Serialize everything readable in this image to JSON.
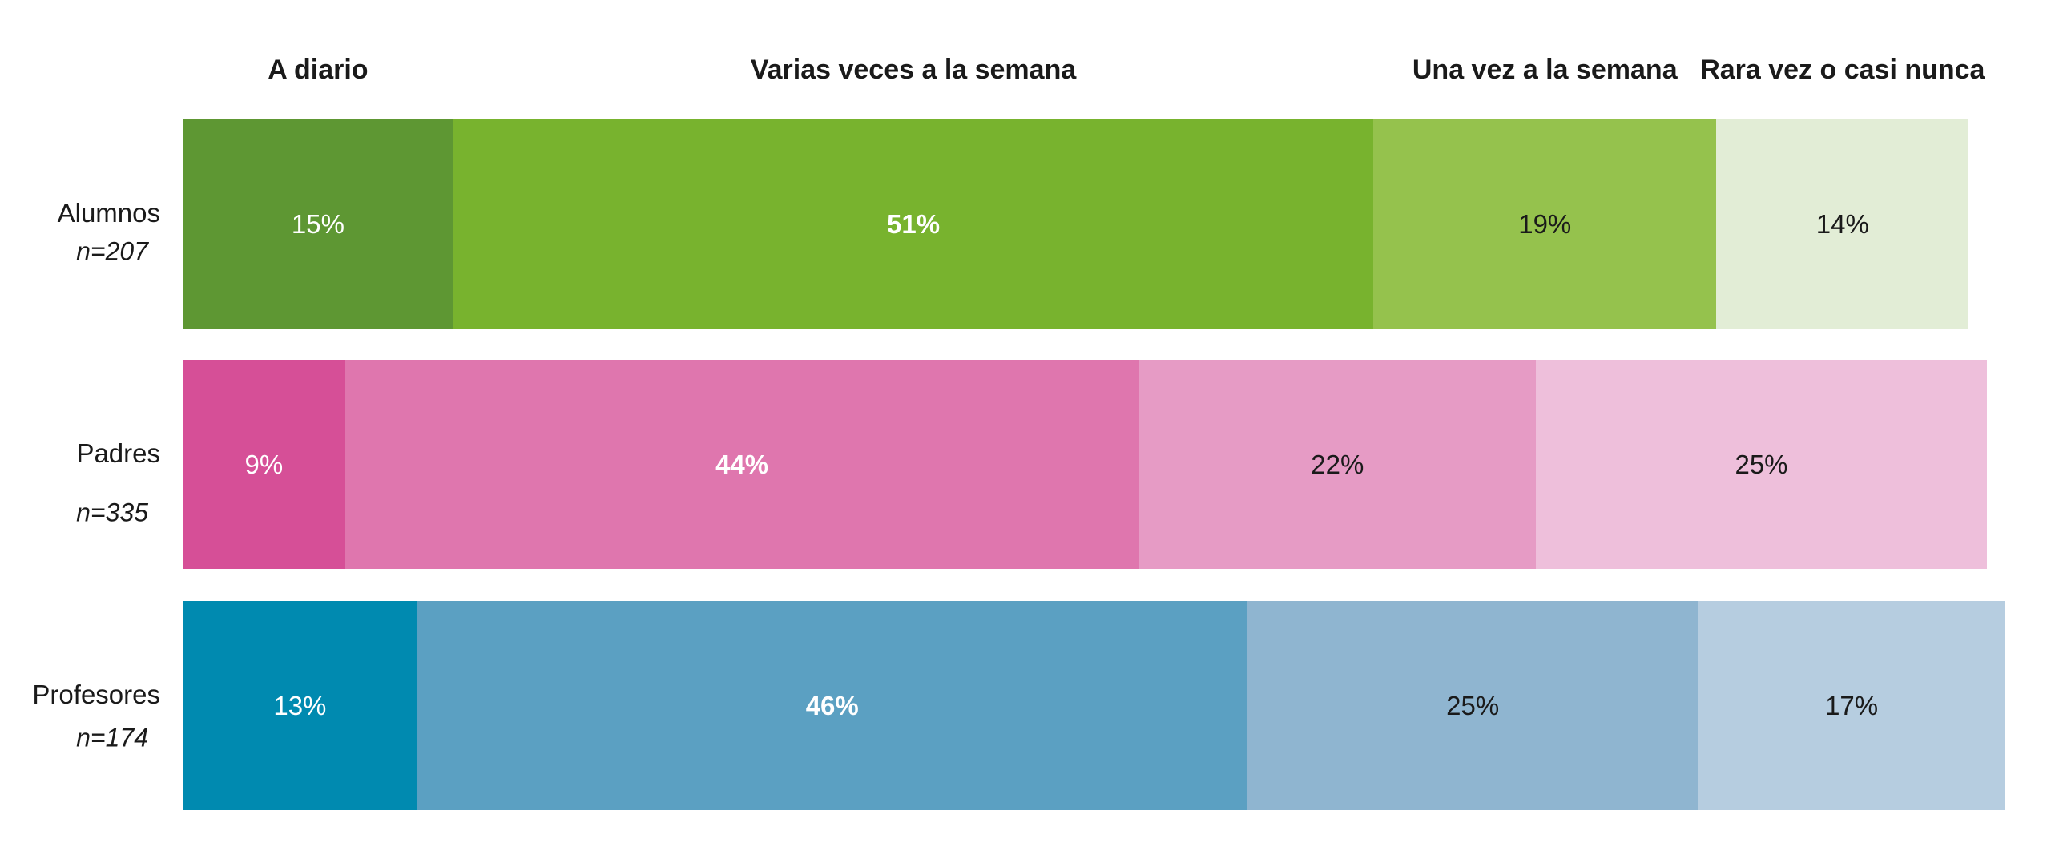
{
  "chart_data": {
    "type": "stacked_bar",
    "orientation": "horizontal",
    "categories": [
      "Alumnos",
      "Padres",
      "Profesores"
    ],
    "sample_sizes": [
      "n=207",
      "n=335",
      "n=174"
    ],
    "xlim": [
      0,
      100
    ],
    "series": [
      {
        "name": "A diario",
        "colors": [
          "#5e9733",
          "#d64f97",
          "#008ab0"
        ],
        "values": [
          15,
          9,
          13
        ],
        "value_labels": [
          "15%",
          "9%",
          "13%"
        ]
      },
      {
        "name": "Varias veces a la semana",
        "colors": [
          "#78b32e",
          "#df76ae",
          "#5ba0c2"
        ],
        "values": [
          51,
          44,
          46
        ],
        "value_labels": [
          "51%",
          "44%",
          "46%"
        ]
      },
      {
        "name": "Una vez a la semana",
        "colors": [
          "#95c24d",
          "#e69bc5",
          "#8fb5d0"
        ],
        "values": [
          19,
          22,
          25
        ],
        "value_labels": [
          "19%",
          "22%",
          "25%"
        ]
      },
      {
        "name": "Rara vez o casi nunca",
        "colors": [
          "#e2edd6",
          "#eebfdb",
          "#b6cde0"
        ],
        "values": [
          14,
          25,
          17
        ],
        "value_labels": [
          "14%",
          "25%",
          "17%"
        ]
      }
    ]
  }
}
